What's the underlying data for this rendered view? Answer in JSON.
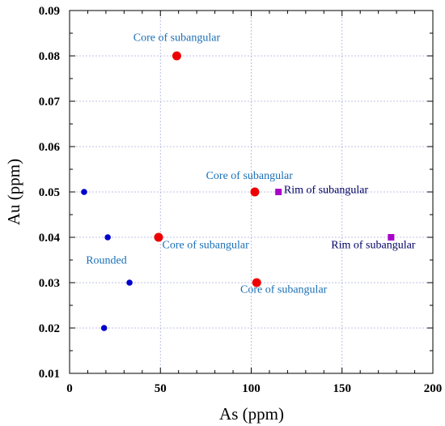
{
  "chart_data": {
    "type": "scatter",
    "xlabel": "As (ppm)",
    "ylabel": "Au (ppm)",
    "xlim": [
      0,
      200
    ],
    "ylim": [
      0.01,
      0.09
    ],
    "x_ticks": [
      0,
      50,
      100,
      150,
      200
    ],
    "y_ticks": [
      0.01,
      0.02,
      0.03,
      0.04,
      0.05,
      0.06,
      0.07,
      0.08,
      0.09
    ],
    "y_tick_labels": [
      "0.01",
      "0.02",
      "0.03",
      "0.04",
      "0.05",
      "0.06",
      "0.07",
      "0.08",
      "0.09"
    ],
    "grid": true,
    "series": [
      {
        "marker": "circle",
        "color": "#0000cc",
        "size": "small",
        "points": [
          {
            "x": 8,
            "y": 0.05
          },
          {
            "x": 21,
            "y": 0.04
          },
          {
            "x": 33,
            "y": 0.03
          },
          {
            "x": 19,
            "y": 0.02
          }
        ]
      },
      {
        "marker": "circle",
        "color": "#ee0000",
        "size": "large",
        "points": [
          {
            "x": 59,
            "y": 0.08
          },
          {
            "x": 102,
            "y": 0.05
          },
          {
            "x": 49,
            "y": 0.04
          },
          {
            "x": 103,
            "y": 0.03
          }
        ]
      },
      {
        "marker": "square",
        "color": "#aa00cc",
        "size": "small",
        "points": [
          {
            "x": 115,
            "y": 0.05
          },
          {
            "x": 177,
            "y": 0.04
          }
        ]
      }
    ],
    "annotations": [
      {
        "text": "Core of subangular",
        "x": 59,
        "y": 0.0833,
        "anchor": "middle",
        "color": "#1a6fb5"
      },
      {
        "text": "Core of subangular",
        "x": 99,
        "y": 0.0529,
        "anchor": "middle",
        "color": "#1a6fb5"
      },
      {
        "text": "Rim of subangular",
        "x": 118,
        "y": 0.0497,
        "anchor": "start",
        "color": "#000066"
      },
      {
        "text": "Core of subangular",
        "x": 51,
        "y": 0.0376,
        "anchor": "start",
        "color": "#1a6fb5"
      },
      {
        "text": "Rim of subangular",
        "x": 144,
        "y": 0.0376,
        "anchor": "start",
        "color": "#000066"
      },
      {
        "text": "Rounded",
        "x": 9,
        "y": 0.0342,
        "anchor": "start",
        "color": "#1a6fb5"
      },
      {
        "text": "Core of subangular",
        "x": 94,
        "y": 0.0278,
        "anchor": "start",
        "color": "#1a6fb5"
      }
    ]
  }
}
